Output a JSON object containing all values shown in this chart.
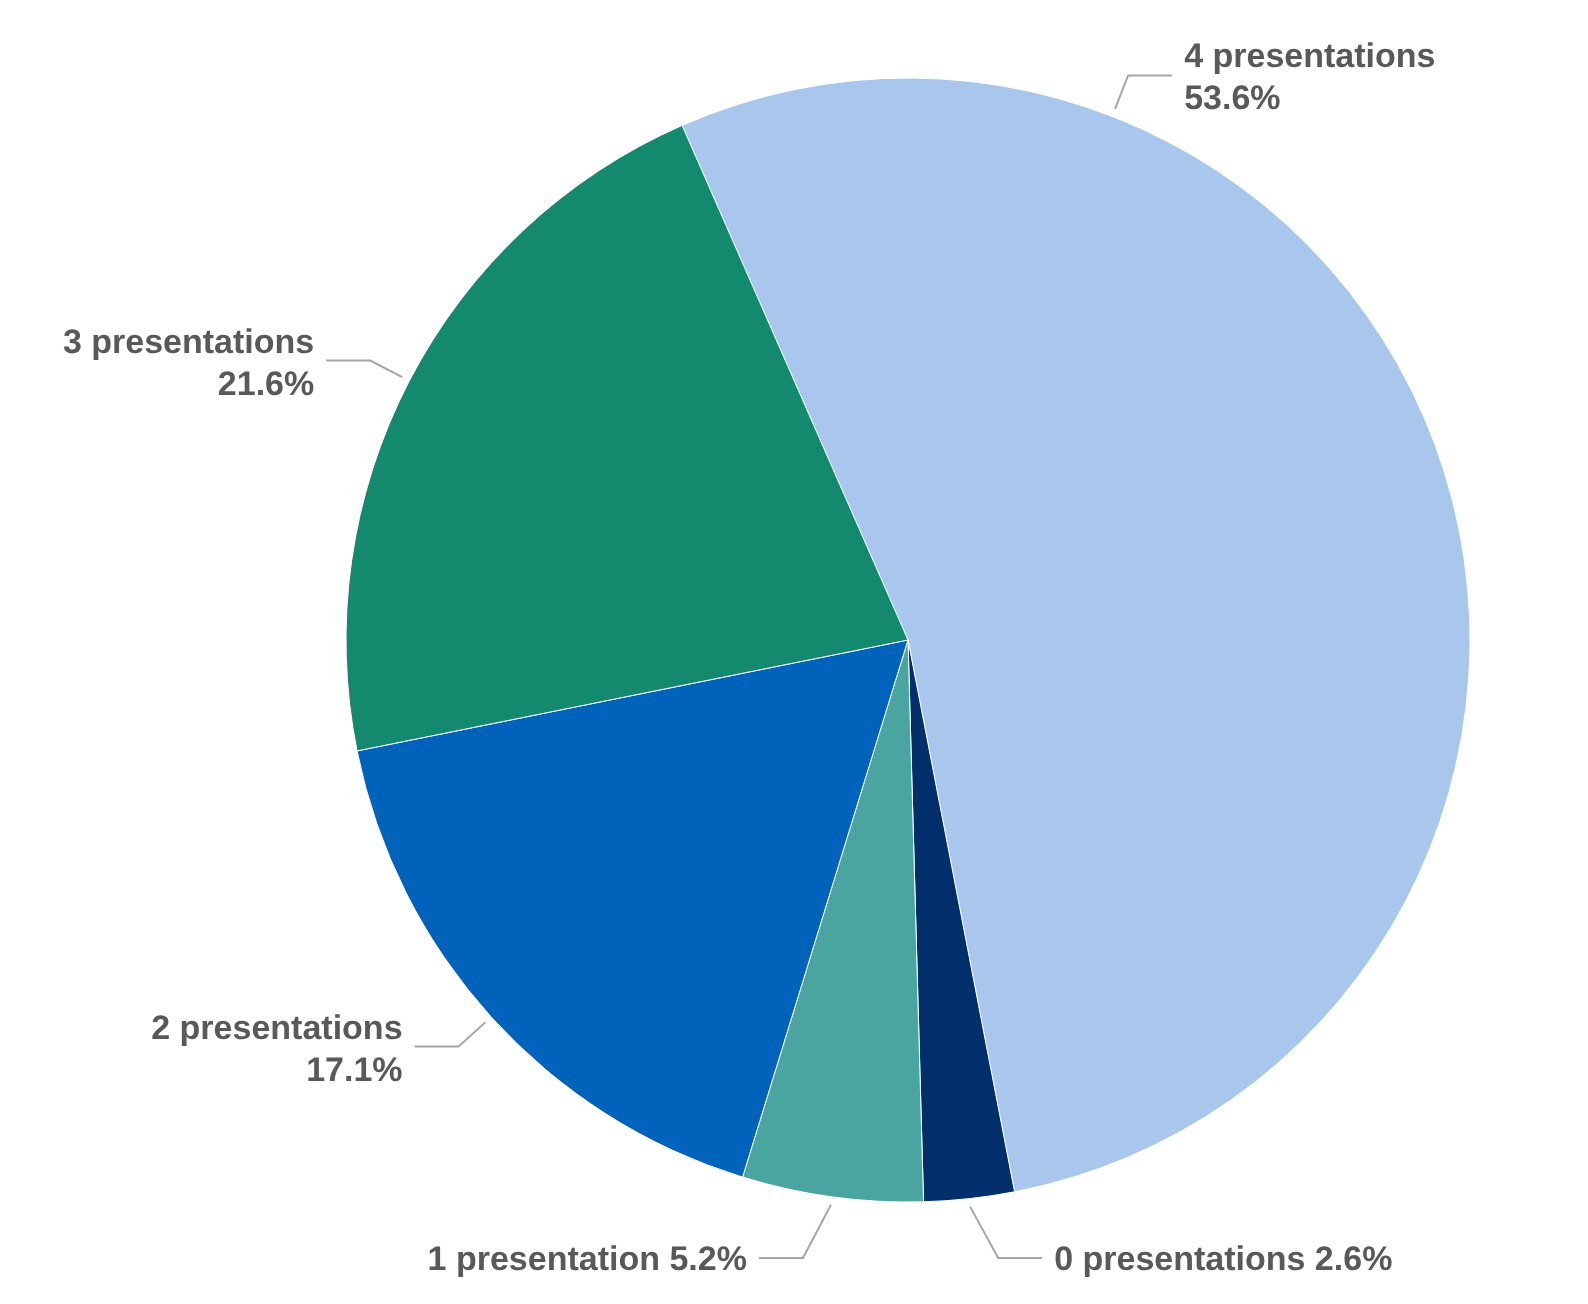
{
  "chart_data": {
    "type": "pie",
    "categories": [
      "4 presentations",
      "0 presentations",
      "1 presentation",
      "2 presentations",
      "3 presentations"
    ],
    "values": [
      53.6,
      2.6,
      5.2,
      17.1,
      21.6
    ],
    "colors": [
      "#a9c6ec",
      "#002f6c",
      "#4aa5a0",
      "#0063bb",
      "#138a6e"
    ],
    "value_labels": [
      "53.6%",
      "2.6%",
      "5.2%",
      "17.1%",
      "21.6%"
    ]
  }
}
